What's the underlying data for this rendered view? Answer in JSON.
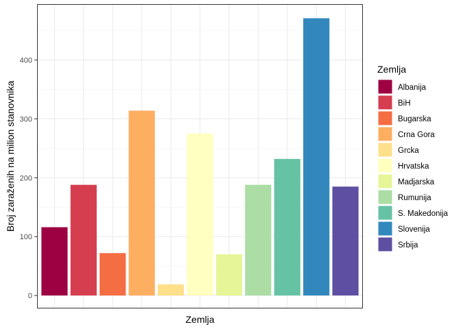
{
  "chart_data": {
    "type": "bar",
    "categories": [
      "Albanija",
      "BiH",
      "Bugarska",
      "Crna Gora",
      "Grcka",
      "Hrvatska",
      "Madjarska",
      "Rumunija",
      "S. Makedonija",
      "Slovenija",
      "Srbija"
    ],
    "values": [
      116,
      188,
      72,
      314,
      19,
      275,
      70,
      188,
      232,
      471,
      185
    ],
    "colors": [
      "#9E0142",
      "#D53E4F",
      "#F46D43",
      "#FDAE61",
      "#FEE08B",
      "#FFFFBF",
      "#E6F598",
      "#ABDDA4",
      "#66C2A5",
      "#3288BD",
      "#5E4FA2"
    ],
    "xlabel": "Zemlja",
    "ylabel": "Broj zaraženih na milion stanovnika",
    "ylim": [
      -22,
      495
    ],
    "yticks": [
      0,
      100,
      200,
      300,
      400
    ],
    "grid": true,
    "legend": {
      "title": "Zemlja",
      "position": "right"
    }
  }
}
